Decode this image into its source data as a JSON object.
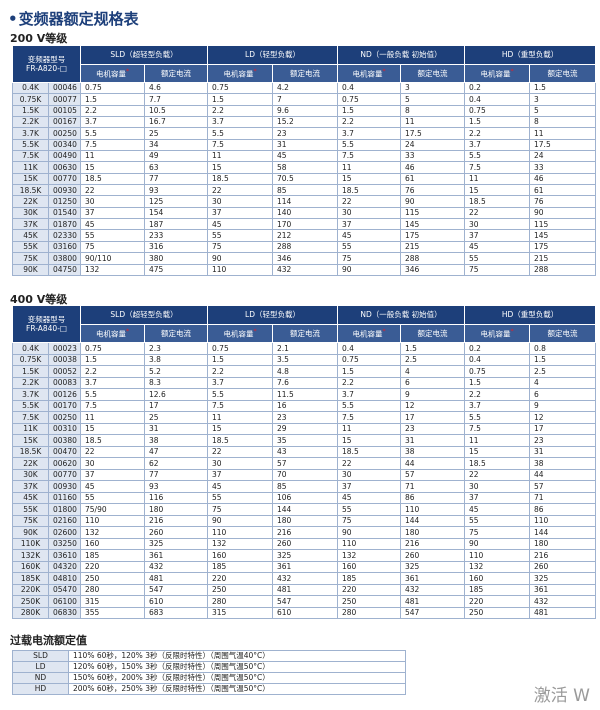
{
  "title": "变频器额定规格表",
  "tables": [
    {
      "section": "200 V等级",
      "model_label": "变频器型号",
      "model_name": "FR-A820-□",
      "groups": [
        "SLD（超轻型负载）",
        "LD（轻型负载）",
        "ND（一般负载 初始值）",
        "HD（重型负载）"
      ],
      "columns": [
        "电机容量",
        "额定电流"
      ],
      "note_mark": "*",
      "rows": [
        [
          "0.4K",
          "00046",
          "0.75",
          "4.6",
          "0.75",
          "4.2",
          "0.4",
          "3",
          "0.2",
          "1.5"
        ],
        [
          "0.75K",
          "00077",
          "1.5",
          "7.7",
          "1.5",
          "7",
          "0.75",
          "5",
          "0.4",
          "3"
        ],
        [
          "1.5K",
          "00105",
          "2.2",
          "10.5",
          "2.2",
          "9.6",
          "1.5",
          "8",
          "0.75",
          "5"
        ],
        [
          "2.2K",
          "00167",
          "3.7",
          "16.7",
          "3.7",
          "15.2",
          "2.2",
          "11",
          "1.5",
          "8"
        ],
        [
          "3.7K",
          "00250",
          "5.5",
          "25",
          "5.5",
          "23",
          "3.7",
          "17.5",
          "2.2",
          "11"
        ],
        [
          "5.5K",
          "00340",
          "7.5",
          "34",
          "7.5",
          "31",
          "5.5",
          "24",
          "3.7",
          "17.5"
        ],
        [
          "7.5K",
          "00490",
          "11",
          "49",
          "11",
          "45",
          "7.5",
          "33",
          "5.5",
          "24"
        ],
        [
          "11K",
          "00630",
          "15",
          "63",
          "15",
          "58",
          "11",
          "46",
          "7.5",
          "33"
        ],
        [
          "15K",
          "00770",
          "18.5",
          "77",
          "18.5",
          "70.5",
          "15",
          "61",
          "11",
          "46"
        ],
        [
          "18.5K",
          "00930",
          "22",
          "93",
          "22",
          "85",
          "18.5",
          "76",
          "15",
          "61"
        ],
        [
          "22K",
          "01250",
          "30",
          "125",
          "30",
          "114",
          "22",
          "90",
          "18.5",
          "76"
        ],
        [
          "30K",
          "01540",
          "37",
          "154",
          "37",
          "140",
          "30",
          "115",
          "22",
          "90"
        ],
        [
          "37K",
          "01870",
          "45",
          "187",
          "45",
          "170",
          "37",
          "145",
          "30",
          "115"
        ],
        [
          "45K",
          "02330",
          "55",
          "233",
          "55",
          "212",
          "45",
          "175",
          "37",
          "145"
        ],
        [
          "55K",
          "03160",
          "75",
          "316",
          "75",
          "288",
          "55",
          "215",
          "45",
          "175"
        ],
        [
          "75K",
          "03800",
          "90/110",
          "380",
          "90",
          "346",
          "75",
          "288",
          "55",
          "215"
        ],
        [
          "90K",
          "04750",
          "132",
          "475",
          "110",
          "432",
          "90",
          "346",
          "75",
          "288"
        ]
      ]
    },
    {
      "section": "400 V等级",
      "model_label": "变频器型号",
      "model_name": "FR-A840-□",
      "groups": [
        "SLD（超轻型负载）",
        "LD（轻型负载）",
        "ND（一般负载 初始值）",
        "HD（重型负载）"
      ],
      "columns": [
        "电机容量",
        "额定电流"
      ],
      "note_mark": "*",
      "rows": [
        [
          "0.4K",
          "00023",
          "0.75",
          "2.3",
          "0.75",
          "2.1",
          "0.4",
          "1.5",
          "0.2",
          "0.8"
        ],
        [
          "0.75K",
          "00038",
          "1.5",
          "3.8",
          "1.5",
          "3.5",
          "0.75",
          "2.5",
          "0.4",
          "1.5"
        ],
        [
          "1.5K",
          "00052",
          "2.2",
          "5.2",
          "2.2",
          "4.8",
          "1.5",
          "4",
          "0.75",
          "2.5"
        ],
        [
          "2.2K",
          "00083",
          "3.7",
          "8.3",
          "3.7",
          "7.6",
          "2.2",
          "6",
          "1.5",
          "4"
        ],
        [
          "3.7K",
          "00126",
          "5.5",
          "12.6",
          "5.5",
          "11.5",
          "3.7",
          "9",
          "2.2",
          "6"
        ],
        [
          "5.5K",
          "00170",
          "7.5",
          "17",
          "7.5",
          "16",
          "5.5",
          "12",
          "3.7",
          "9"
        ],
        [
          "7.5K",
          "00250",
          "11",
          "25",
          "11",
          "23",
          "7.5",
          "17",
          "5.5",
          "12"
        ],
        [
          "11K",
          "00310",
          "15",
          "31",
          "15",
          "29",
          "11",
          "23",
          "7.5",
          "17"
        ],
        [
          "15K",
          "00380",
          "18.5",
          "38",
          "18.5",
          "35",
          "15",
          "31",
          "11",
          "23"
        ],
        [
          "18.5K",
          "00470",
          "22",
          "47",
          "22",
          "43",
          "18.5",
          "38",
          "15",
          "31"
        ],
        [
          "22K",
          "00620",
          "30",
          "62",
          "30",
          "57",
          "22",
          "44",
          "18.5",
          "38"
        ],
        [
          "30K",
          "00770",
          "37",
          "77",
          "37",
          "70",
          "30",
          "57",
          "22",
          "44"
        ],
        [
          "37K",
          "00930",
          "45",
          "93",
          "45",
          "85",
          "37",
          "71",
          "30",
          "57"
        ],
        [
          "45K",
          "01160",
          "55",
          "116",
          "55",
          "106",
          "45",
          "86",
          "37",
          "71"
        ],
        [
          "55K",
          "01800",
          "75/90",
          "180",
          "75",
          "144",
          "55",
          "110",
          "45",
          "86"
        ],
        [
          "75K",
          "02160",
          "110",
          "216",
          "90",
          "180",
          "75",
          "144",
          "55",
          "110"
        ],
        [
          "90K",
          "02600",
          "132",
          "260",
          "110",
          "216",
          "90",
          "180",
          "75",
          "144"
        ],
        [
          "110K",
          "03250",
          "160",
          "325",
          "132",
          "260",
          "110",
          "216",
          "90",
          "180"
        ],
        [
          "132K",
          "03610",
          "185",
          "361",
          "160",
          "325",
          "132",
          "260",
          "110",
          "216"
        ],
        [
          "160K",
          "04320",
          "220",
          "432",
          "185",
          "361",
          "160",
          "325",
          "132",
          "260"
        ],
        [
          "185K",
          "04810",
          "250",
          "481",
          "220",
          "432",
          "185",
          "361",
          "160",
          "325"
        ],
        [
          "220K",
          "05470",
          "280",
          "547",
          "250",
          "481",
          "220",
          "432",
          "185",
          "361"
        ],
        [
          "250K",
          "06100",
          "315",
          "610",
          "280",
          "547",
          "250",
          "481",
          "220",
          "432"
        ],
        [
          "280K",
          "06830",
          "355",
          "683",
          "315",
          "610",
          "280",
          "547",
          "250",
          "481"
        ]
      ]
    }
  ],
  "overload": {
    "title": "过载电流额定值",
    "rows": [
      [
        "SLD",
        "110% 60秒，120% 3秒（反限时特性）（周围气温40°C）"
      ],
      [
        "LD",
        "120% 60秒，150% 3秒（反限时特性）（周围气温50°C）"
      ],
      [
        "ND",
        "150% 60秒，200% 3秒（反限时特性）（周围气温50°C）"
      ],
      [
        "HD",
        "200% 60秒，250% 3秒（反限时特性）（周围气温50°C）"
      ]
    ]
  },
  "watermark": "激活 W"
}
